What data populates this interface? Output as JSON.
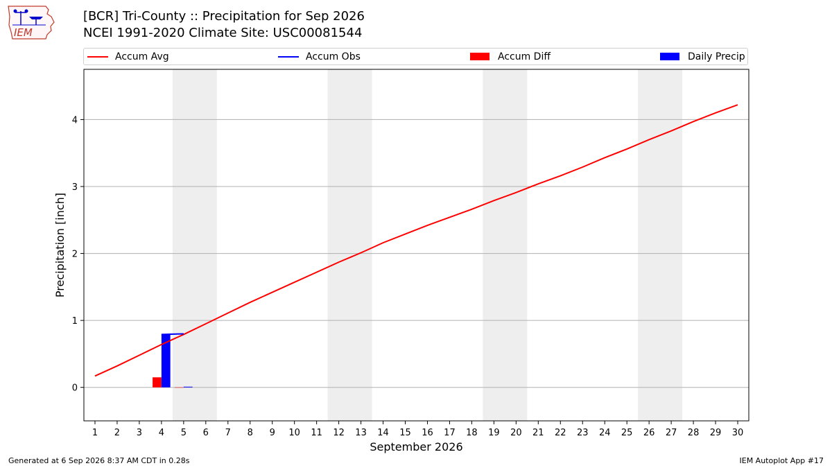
{
  "logo": {
    "text": "IEM",
    "icon": "iowa-state-outline-weather-station-icon"
  },
  "title_line1": "[BCR] Tri-County :: Precipitation for Sep 2026",
  "title_line2": "NCEI 1991-2020 Climate Site: USC00081544",
  "footer": {
    "left": "Generated at 6 Sep 2026 8:37 AM CDT in 0.28s",
    "right": "IEM Autoplot App #17"
  },
  "chart_data": {
    "type": "line",
    "title": "[BCR] Tri-County :: Precipitation for Sep 2026",
    "subtitle": "NCEI 1991-2020 Climate Site: USC00081544",
    "xlabel": "September 2026",
    "ylabel": "Precipitation [inch]",
    "ylim": [
      -0.5,
      4.75
    ],
    "yticks": [
      0,
      1,
      2,
      3,
      4
    ],
    "grid": "y",
    "legend_position": "top",
    "x_tick_labels": [
      "1",
      "2",
      "3",
      "4",
      "5",
      "6",
      "7",
      "8",
      "9",
      "10",
      "11",
      "12",
      "13",
      "14",
      "15",
      "16",
      "17",
      "18",
      "19",
      "20",
      "21",
      "22",
      "23",
      "24",
      "25",
      "26",
      "27",
      "28",
      "29",
      "30"
    ],
    "weekend_shading": [
      [
        5,
        6
      ],
      [
        12,
        13
      ],
      [
        19,
        20
      ],
      [
        26,
        27
      ]
    ],
    "weekend_shade_color": "#eeeeee",
    "series": [
      {
        "name": "Accum Avg",
        "type": "line",
        "color": "#ff0000",
        "x": [
          1,
          2,
          3,
          4,
          5,
          6,
          7,
          8,
          9,
          10,
          11,
          12,
          13,
          14,
          15,
          16,
          17,
          18,
          19,
          20,
          21,
          22,
          23,
          24,
          25,
          26,
          27,
          28,
          29,
          30
        ],
        "values": [
          0.17,
          0.32,
          0.48,
          0.64,
          0.79,
          0.95,
          1.11,
          1.27,
          1.42,
          1.57,
          1.72,
          1.87,
          2.01,
          2.16,
          2.29,
          2.42,
          2.54,
          2.66,
          2.79,
          2.91,
          3.04,
          3.16,
          3.29,
          3.43,
          3.56,
          3.7,
          3.83,
          3.97,
          4.1,
          4.22
        ]
      },
      {
        "name": "Accum Obs",
        "type": "line",
        "color": "#0000ff",
        "x": [
          4,
          5
        ],
        "values": [
          0.79,
          0.8
        ]
      },
      {
        "name": "Accum Diff",
        "type": "bar",
        "color": "#ff0000",
        "x": [
          4,
          5
        ],
        "values": [
          0.15,
          0.0
        ]
      },
      {
        "name": "Daily Precip",
        "type": "bar",
        "color": "#0000ff",
        "x": [
          4,
          5
        ],
        "values": [
          0.79,
          0.01
        ]
      }
    ]
  }
}
